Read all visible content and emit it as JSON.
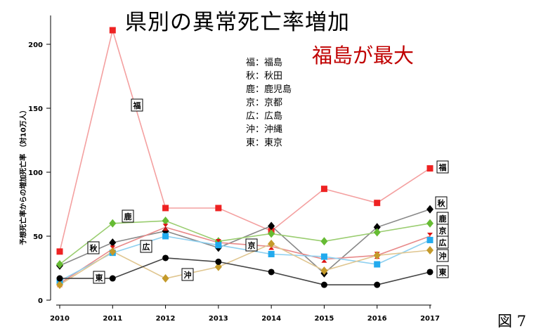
{
  "title": "県別の異常死亡率増加",
  "subtitle": "福島が最大",
  "figure_label": "図 7",
  "abbreviation_key": [
    "福：福島",
    "秋：秋田",
    "鹿：鹿児島",
    "京：京都",
    "広：広島",
    "沖：沖縄",
    "東：東京"
  ],
  "chart_data": {
    "type": "line",
    "title": "県別の異常死亡率増加",
    "xlabel": "",
    "ylabel": "予想死亡率からの増加死亡率 （対10万人）",
    "x": [
      2010,
      2011,
      2012,
      2013,
      2014,
      2015,
      2016,
      2017
    ],
    "xlim": [
      2010,
      2017
    ],
    "ylim": [
      0,
      220
    ],
    "y_ticks": [
      0,
      50,
      100,
      150,
      200
    ],
    "grid": false,
    "series": [
      {
        "name": "福",
        "color": "#ee2222",
        "line_color": "#f4a0a0",
        "marker": "square",
        "values": [
          38,
          211,
          72,
          72,
          54,
          87,
          76,
          103
        ]
      },
      {
        "name": "秋",
        "color": "#000000",
        "line_color": "#888888",
        "marker": "diamond",
        "values": [
          27,
          45,
          54,
          41,
          58,
          21,
          57,
          71
        ]
      },
      {
        "name": "鹿",
        "color": "#66bb33",
        "line_color": "#9acd70",
        "marker": "diamond",
        "values": [
          28,
          60,
          62,
          46,
          52,
          46,
          53,
          60
        ]
      },
      {
        "name": "京",
        "color": "#dd1111",
        "line_color": "#e88a8a",
        "marker": "bowtie",
        "values": [
          13,
          40,
          57,
          45,
          42,
          32,
          35,
          50
        ]
      },
      {
        "name": "広",
        "color": "#22aaee",
        "line_color": "#8fd0f0",
        "marker": "square",
        "values": [
          15,
          37,
          50,
          43,
          36,
          34,
          28,
          47
        ]
      },
      {
        "name": "沖",
        "color": "#c49a2a",
        "line_color": "#e0c690",
        "marker": "diamond",
        "values": [
          12,
          38,
          17,
          26,
          44,
          23,
          35,
          39
        ]
      },
      {
        "name": "東",
        "color": "#000000",
        "line_color": "#444444",
        "marker": "circle",
        "values": [
          17,
          17,
          33,
          30,
          22,
          12,
          12,
          22
        ]
      }
    ]
  }
}
